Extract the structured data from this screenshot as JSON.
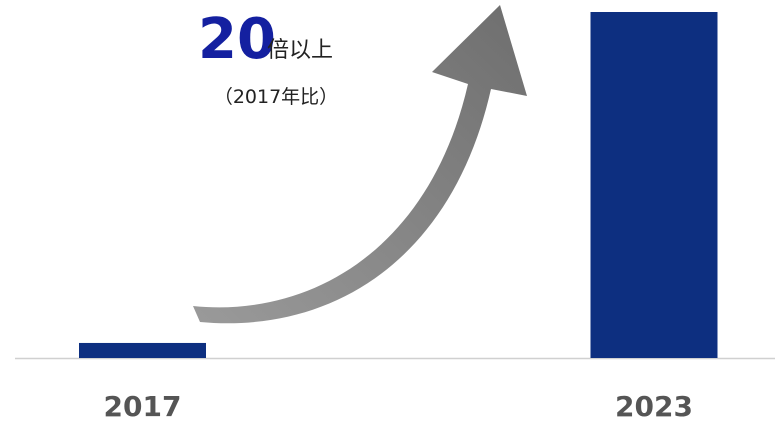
{
  "chart_data": {
    "type": "bar",
    "categories": [
      "2017",
      "2023"
    ],
    "values": [
      1,
      23
    ],
    "color": "#0d2f80",
    "annotations": {
      "multiplier": "20",
      "multiplier_suffix": "倍以上",
      "note": "（2017年比）"
    }
  }
}
